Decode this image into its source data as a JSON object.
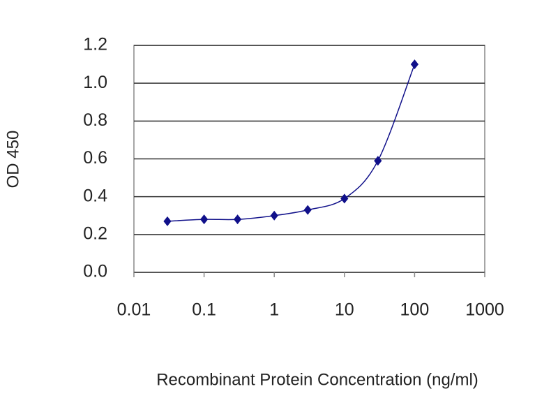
{
  "chart_data": {
    "type": "line",
    "x_label": "Recombinant Protein Concentration (ng/ml)",
    "y_label": "OD 450",
    "x": [
      0.03,
      0.1,
      0.3,
      1,
      3,
      10,
      30,
      100
    ],
    "series": [
      {
        "color": "#10108a",
        "values": [
          0.27,
          0.28,
          0.28,
          0.3,
          0.33,
          0.39,
          0.59,
          1.1
        ]
      }
    ],
    "xscale": "log",
    "xlim": [
      0.01,
      1000
    ],
    "xticks": [
      0.01,
      0.1,
      1,
      10,
      100,
      1000
    ],
    "ylim": [
      0,
      1.2
    ],
    "yticks": [
      {
        "value": 0,
        "label": "0.0"
      },
      0.2,
      0.4,
      0.6,
      0.8,
      {
        "value": 1,
        "label": "1.0"
      },
      1.2
    ],
    "grid": true
  }
}
